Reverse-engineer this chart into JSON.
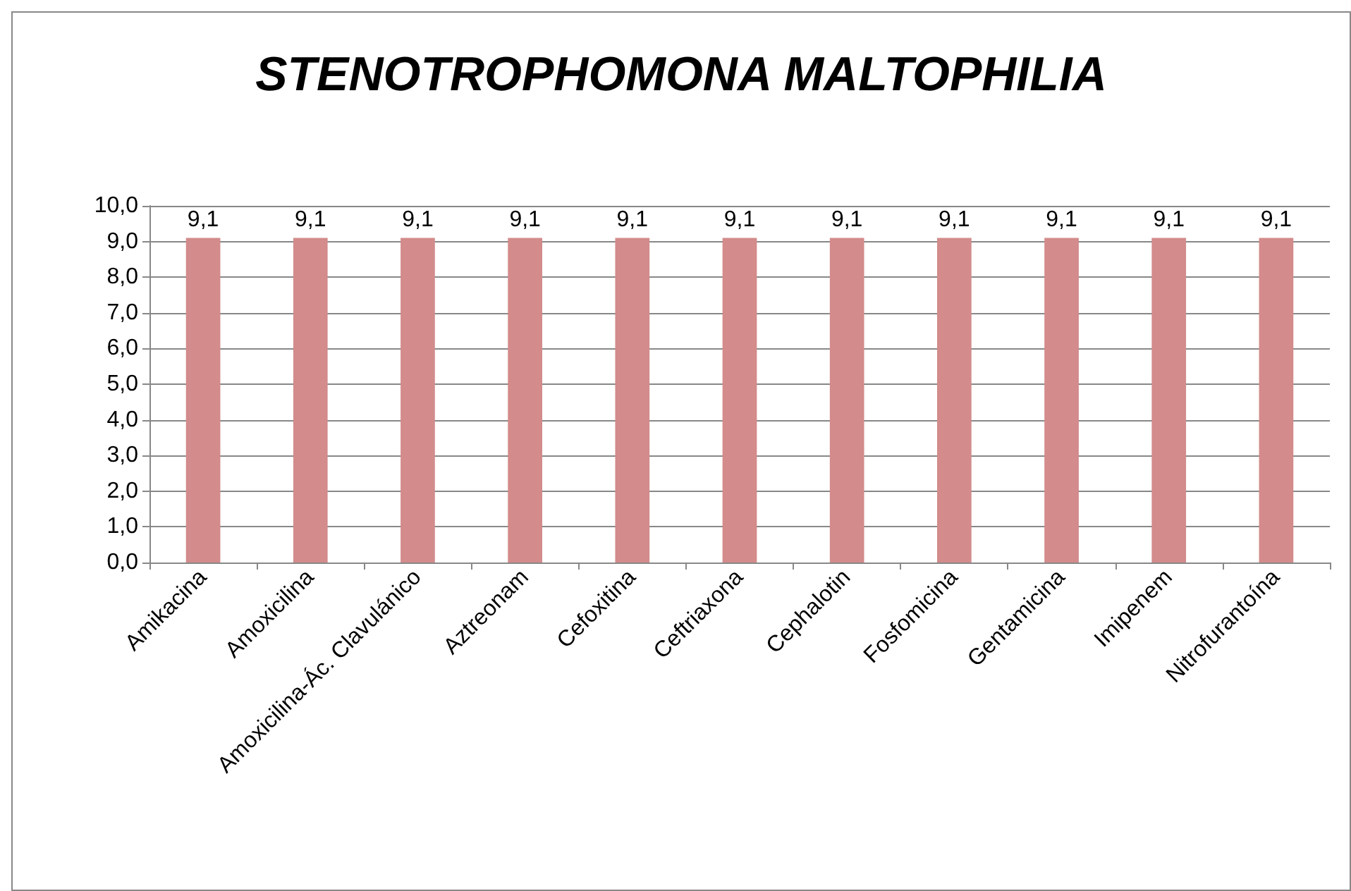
{
  "chart_data": {
    "type": "bar",
    "title": "STENOTROPHOMONA MALTOPHILIA",
    "categories": [
      "Amikacina",
      "Amoxicilina",
      "Amoxicilina-Ác. Clavulánico",
      "Aztreonam",
      "Cefoxitina",
      "Ceftriaxona",
      "Cephalotin",
      "Fosfomicina",
      "Gentamicina",
      "Imipenem",
      "Nitrofurantoína"
    ],
    "values": [
      9.1,
      9.1,
      9.1,
      9.1,
      9.1,
      9.1,
      9.1,
      9.1,
      9.1,
      9.1,
      9.1
    ],
    "value_labels": [
      "9,1",
      "9,1",
      "9,1",
      "9,1",
      "9,1",
      "9,1",
      "9,1",
      "9,1",
      "9,1",
      "9,1",
      "9,1"
    ],
    "color": "#d38b8b",
    "ylim": [
      0,
      10
    ],
    "yticks": [
      {
        "value": 0,
        "label": "0,0"
      },
      {
        "value": 1,
        "label": "1,0"
      },
      {
        "value": 2,
        "label": "2,0"
      },
      {
        "value": 3,
        "label": "3,0"
      },
      {
        "value": 4,
        "label": "4,0"
      },
      {
        "value": 5,
        "label": "5,0"
      },
      {
        "value": 6,
        "label": "6,0"
      },
      {
        "value": 7,
        "label": "7,0"
      },
      {
        "value": 8,
        "label": "8,0"
      },
      {
        "value": 9,
        "label": "9,0"
      },
      {
        "value": 10,
        "label": "10,0"
      }
    ],
    "grid": "y"
  }
}
